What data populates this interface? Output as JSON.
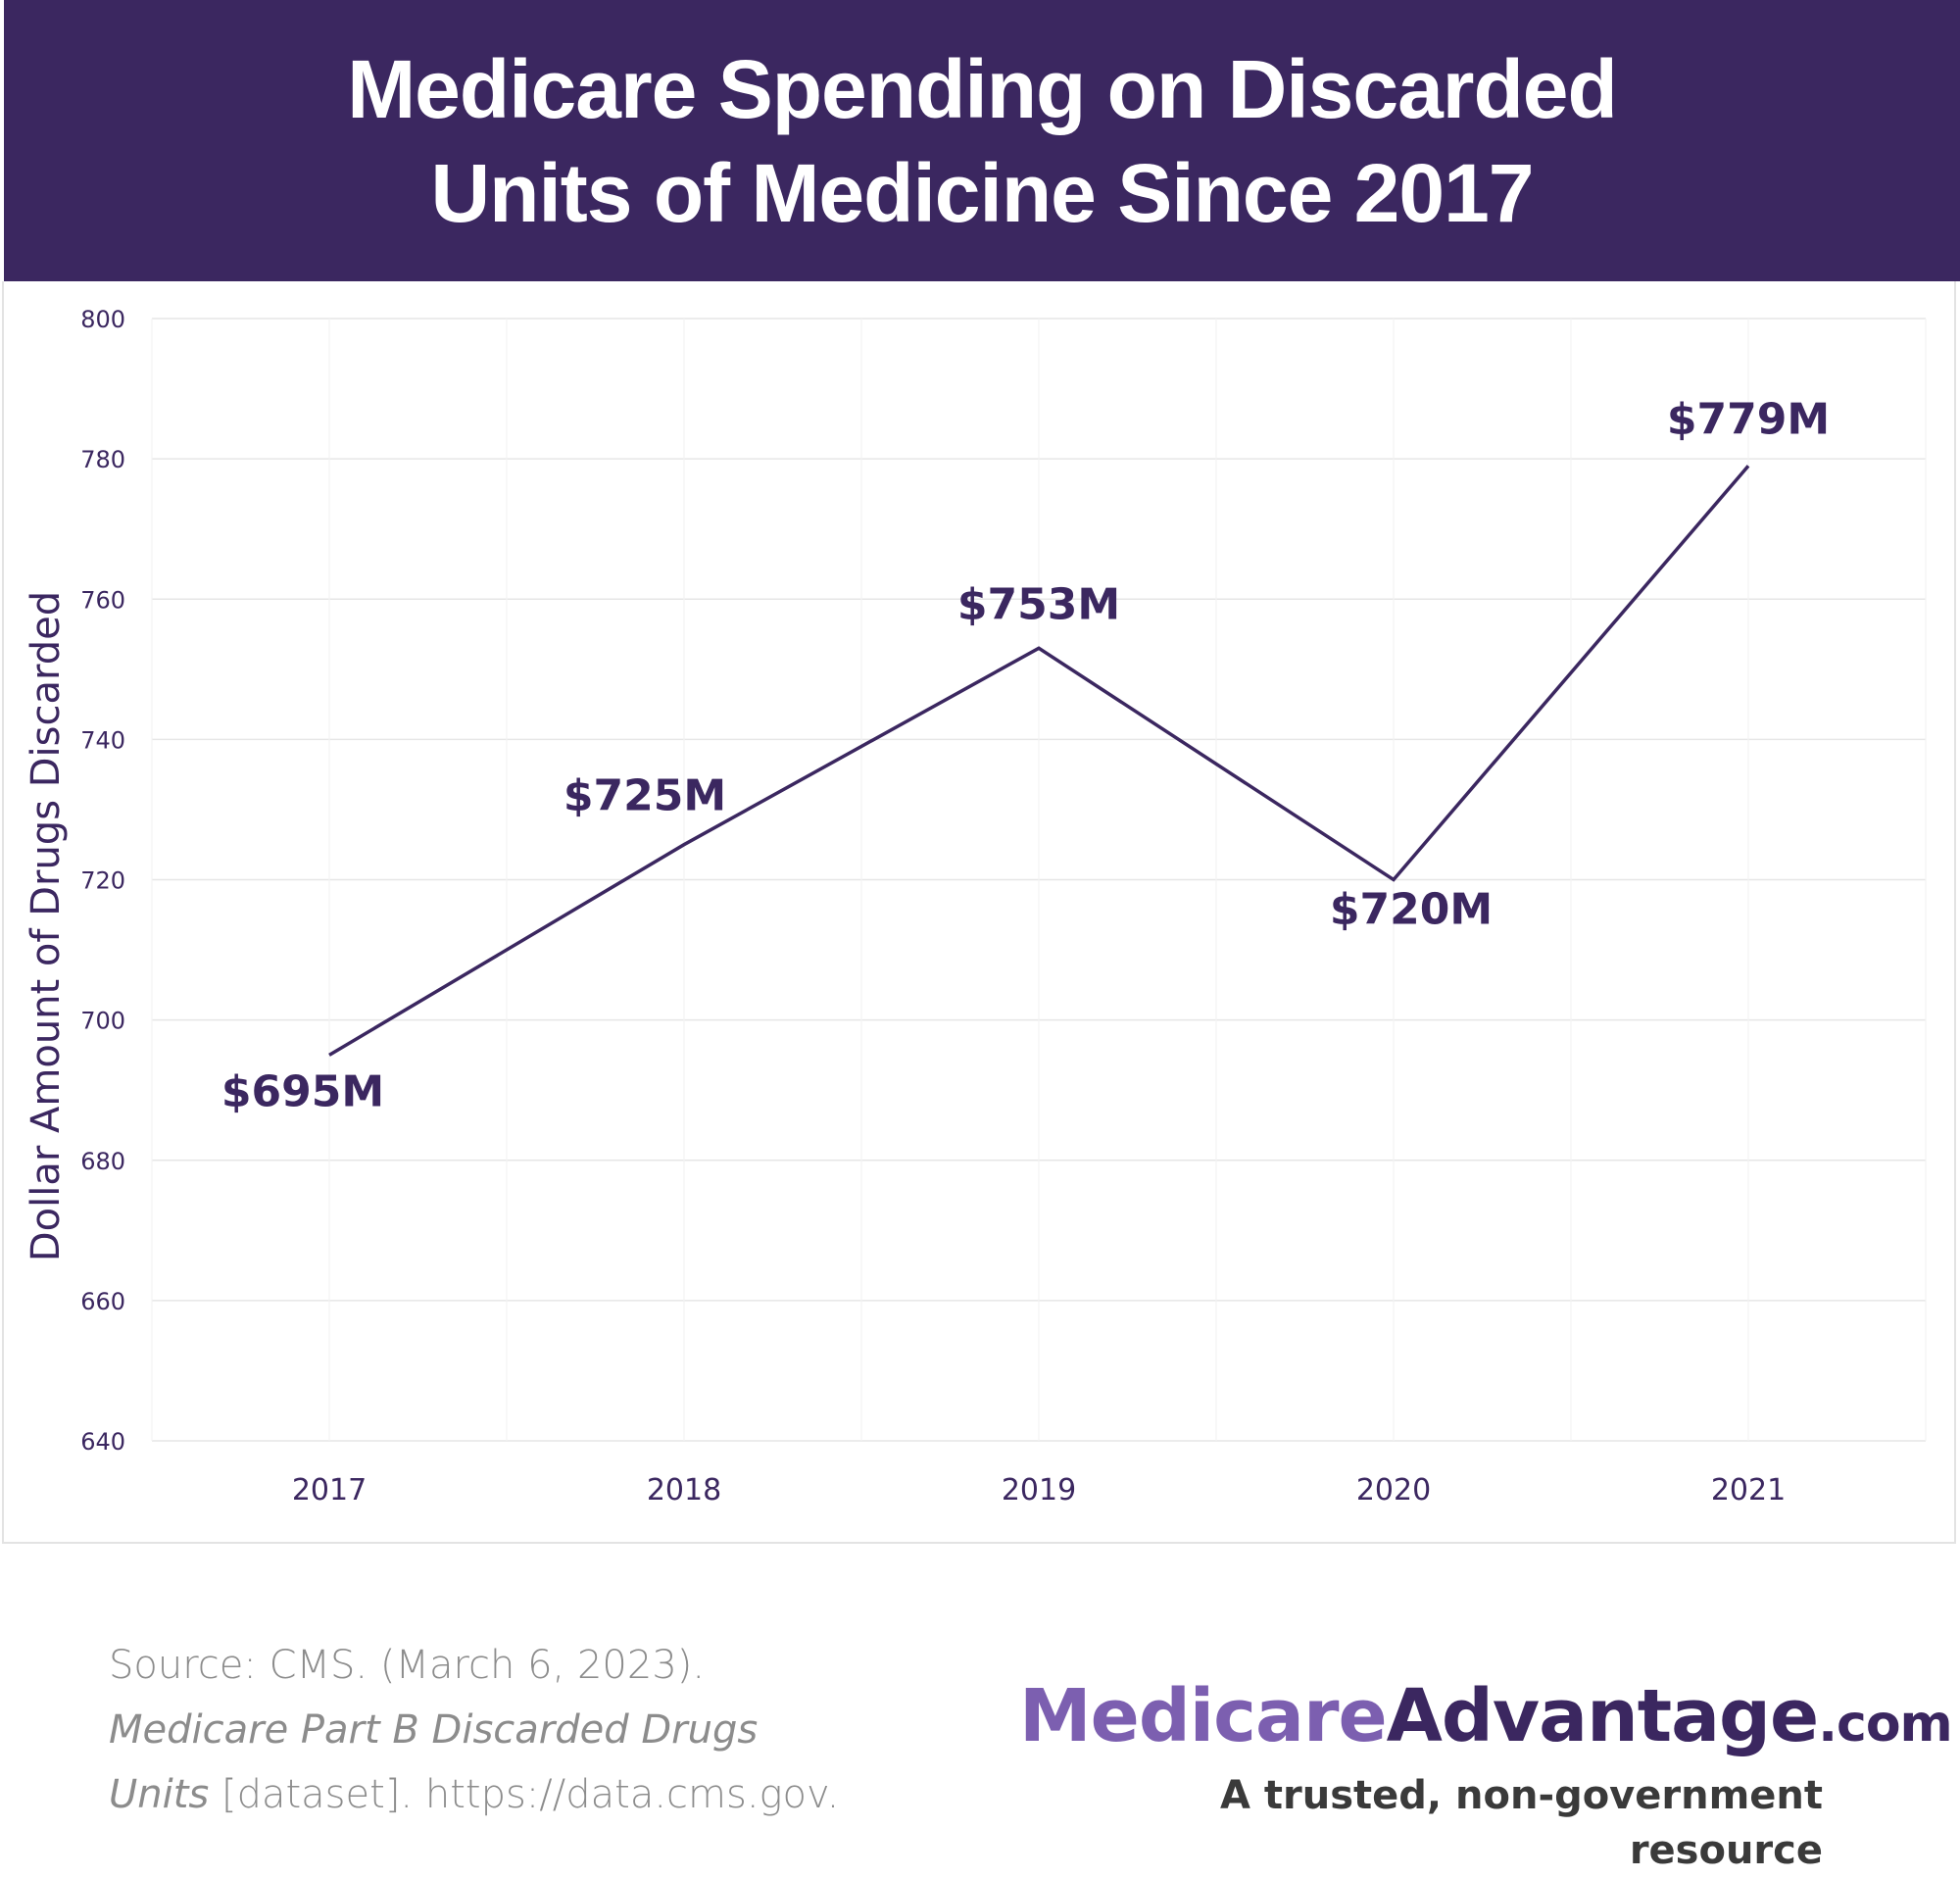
{
  "header": {
    "title_line1": "Medicare Spending on Discarded",
    "title_line2": "Units of Medicine Since 2017"
  },
  "chart_data": {
    "type": "line",
    "categories": [
      "2017",
      "2018",
      "2019",
      "2020",
      "2021"
    ],
    "values": [
      695,
      725,
      753,
      720,
      779
    ],
    "data_labels": [
      "$695M",
      "$725M",
      "$753M",
      "$720M",
      "$779M"
    ],
    "ylabel": "Dollar Amount of Drugs Discarded",
    "ylim": [
      640,
      800
    ],
    "yticks": [
      640,
      660,
      680,
      700,
      720,
      740,
      760,
      780,
      800
    ],
    "grid": true,
    "line_color": "#3b2760",
    "label_color": "#3b2760"
  },
  "footer": {
    "source_prefix": "Source: CMS. (March 6, 2023). ",
    "source_italic": "Medicare Part B Discarded Drugs Units",
    "source_suffix": " [dataset]. https://data.cms.gov.",
    "brand_part1": "Medicare",
    "brand_part2": "Advantage",
    "brand_part3": ".com",
    "tagline": "A trusted, non-government resource"
  }
}
